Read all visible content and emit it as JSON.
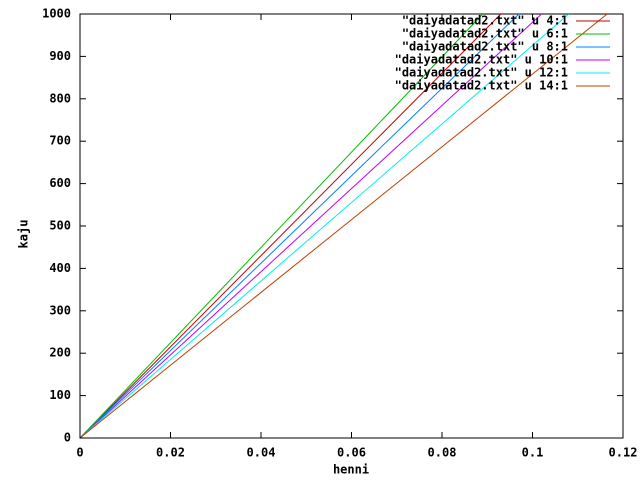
{
  "chart_data": {
    "type": "line",
    "xlabel": "henni",
    "ylabel": "kaju",
    "xlim": [
      0,
      0.12
    ],
    "ylim": [
      0,
      1000
    ],
    "xticks": [
      0,
      0.02,
      0.04,
      0.06,
      0.08,
      {
        "value": 0.1,
        "label": "0.1"
      },
      0.12
    ],
    "yticks": [
      0,
      100,
      200,
      300,
      400,
      500,
      600,
      700,
      800,
      900,
      1000
    ],
    "legend": "top-right",
    "series": [
      {
        "name": "\"daiyadatad2.txt\" u 4:1",
        "color": "#c00000",
        "x": [
          0,
          0.093
        ],
        "values": [
          0,
          1000
        ]
      },
      {
        "name": "\"daiyadatad2.txt\" u 6:1",
        "color": "#00c000",
        "x": [
          0,
          0.089
        ],
        "values": [
          0,
          1000
        ]
      },
      {
        "name": "\"daiyadatad2.txt\" u 8:1",
        "color": "#0080ff",
        "x": [
          0,
          0.097
        ],
        "values": [
          0,
          1000
        ]
      },
      {
        "name": "\"daiyadatad2.txt\" u 10:1",
        "color": "#c000ff",
        "x": [
          0,
          0.102
        ],
        "values": [
          0,
          1000
        ]
      },
      {
        "name": "\"daiyadatad2.txt\" u 12:1",
        "color": "#00eeee",
        "x": [
          0,
          0.108
        ],
        "values": [
          0,
          1000
        ]
      },
      {
        "name": "\"daiyadatad2.txt\" u 14:1",
        "color": "#c04000",
        "x": [
          0,
          0.1165
        ],
        "values": [
          0,
          1000
        ]
      }
    ]
  }
}
